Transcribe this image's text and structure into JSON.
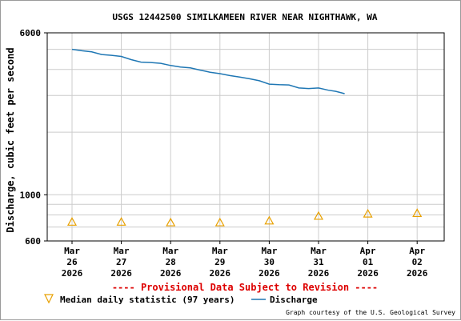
{
  "chart_data": {
    "type": "line",
    "title": "USGS 12442500 SIMILKAMEEN RIVER NEAR NIGHTHAWK, WA",
    "ylabel": "Discharge, cubic feet per second",
    "yscale": "log",
    "ylim": [
      600,
      6000
    ],
    "y_ticks": [
      {
        "value": 600,
        "label": "600"
      },
      {
        "value": 1000,
        "label": "1000"
      },
      {
        "value": 6000,
        "label": "6000"
      }
    ],
    "x_ticks": [
      {
        "month": "Mar",
        "day": "26",
        "year": "2026"
      },
      {
        "month": "Mar",
        "day": "27",
        "year": "2026"
      },
      {
        "month": "Mar",
        "day": "28",
        "year": "2026"
      },
      {
        "month": "Mar",
        "day": "29",
        "year": "2026"
      },
      {
        "month": "Mar",
        "day": "30",
        "year": "2026"
      },
      {
        "month": "Mar",
        "day": "31",
        "year": "2026"
      },
      {
        "month": "Apr",
        "day": "01",
        "year": "2026"
      },
      {
        "month": "Apr",
        "day": "02",
        "year": "2026"
      }
    ],
    "grid": true,
    "series": [
      {
        "name": "Discharge",
        "color": "#1f77b4",
        "points": [
          [
            0.0,
            5000
          ],
          [
            0.2,
            4920
          ],
          [
            0.4,
            4860
          ],
          [
            0.6,
            4720
          ],
          [
            0.8,
            4680
          ],
          [
            1.0,
            4620
          ],
          [
            1.2,
            4460
          ],
          [
            1.4,
            4340
          ],
          [
            1.6,
            4320
          ],
          [
            1.8,
            4280
          ],
          [
            2.0,
            4180
          ],
          [
            2.2,
            4110
          ],
          [
            2.4,
            4070
          ],
          [
            2.6,
            3970
          ],
          [
            2.8,
            3880
          ],
          [
            3.0,
            3820
          ],
          [
            3.2,
            3740
          ],
          [
            3.4,
            3680
          ],
          [
            3.6,
            3610
          ],
          [
            3.8,
            3530
          ],
          [
            4.0,
            3400
          ],
          [
            4.2,
            3380
          ],
          [
            4.4,
            3370
          ],
          [
            4.6,
            3260
          ],
          [
            4.8,
            3240
          ],
          [
            5.0,
            3260
          ],
          [
            5.2,
            3180
          ],
          [
            5.35,
            3140
          ],
          [
            5.53,
            3060
          ]
        ]
      },
      {
        "name": "Median daily statistic (97 years)",
        "color": "#e8a000",
        "marker": "triangle",
        "points": [
          [
            0,
            740
          ],
          [
            1,
            740
          ],
          [
            2,
            735
          ],
          [
            3,
            735
          ],
          [
            4,
            750
          ],
          [
            5,
            790
          ],
          [
            6,
            810
          ],
          [
            7,
            815
          ]
        ]
      }
    ],
    "provisional_note": "---- Provisional Data Subject to Revision ----",
    "legend": {
      "placement": "bottom",
      "median_label": "Median daily statistic (97 years)",
      "discharge_label": "Discharge"
    },
    "credit": "Graph courtesy of the U.S. Geological Survey"
  }
}
